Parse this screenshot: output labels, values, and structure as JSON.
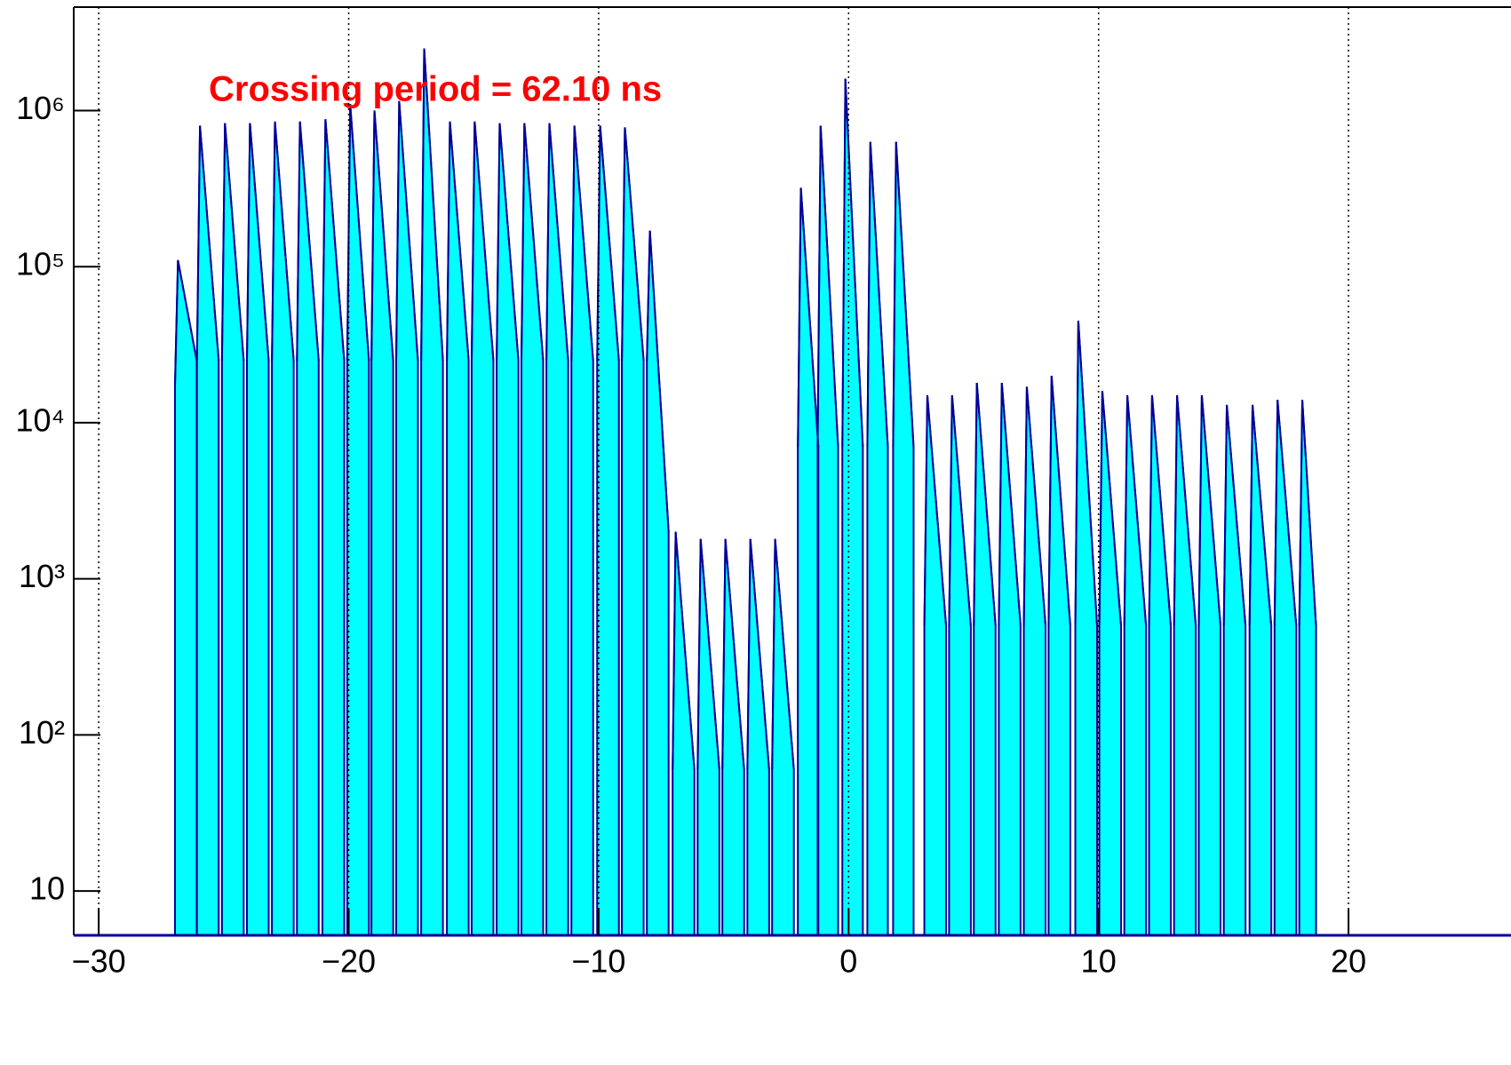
{
  "chart_data": {
    "type": "histogram-line",
    "annotation": "Crossing period =  62.10 ns",
    "log_y": true,
    "grid": true,
    "fill_color": "#00ffff",
    "line_color": "#000099",
    "annotation_color": "#ff0000",
    "xlim": [
      -31,
      26.5
    ],
    "xticks": [
      {
        "value": -30,
        "label": "−30"
      },
      {
        "value": -20,
        "label": "−20"
      },
      {
        "value": -10,
        "label": "−10"
      },
      0,
      10,
      20
    ],
    "ylim": [
      5.2,
      4600000
    ],
    "yticks": [
      10,
      {
        "value": 100,
        "label": "10²"
      },
      {
        "value": 1000,
        "label": "10³"
      },
      {
        "value": 10000,
        "label": "10⁴"
      },
      {
        "value": 100000,
        "label": "10⁵"
      },
      {
        "value": 1000000,
        "label": "10⁶"
      }
    ],
    "x": [
      -26.95,
      -26.83,
      -26.08,
      null,
      -26.07,
      -25.95,
      -25.2,
      null,
      -25.07,
      -24.95,
      -24.2,
      null,
      -24.07,
      -23.95,
      -23.2,
      null,
      -23.07,
      -22.95,
      -22.2,
      null,
      -22.07,
      -21.95,
      -21.2,
      null,
      -21.05,
      -20.93,
      -20.18,
      null,
      -20.06,
      -19.94,
      -19.19,
      null,
      -19.09,
      -18.97,
      -18.22,
      null,
      -18.1,
      -17.98,
      -17.23,
      null,
      -17.1,
      -16.98,
      -16.23,
      null,
      -16.07,
      -15.95,
      -15.2,
      null,
      -15.08,
      -14.96,
      -14.21,
      null,
      -14.08,
      -13.96,
      -13.21,
      null,
      -13.09,
      -12.97,
      -12.22,
      null,
      -12.09,
      -11.97,
      -11.22,
      null,
      -11.09,
      -10.97,
      -10.22,
      null,
      -10.06,
      -9.94,
      -9.19,
      null,
      -9.07,
      -8.95,
      -8.2,
      null,
      -8.07,
      -7.95,
      -7.2,
      null,
      -7.04,
      -6.92,
      -6.17,
      null,
      -6.04,
      -5.92,
      -5.17,
      null,
      -5.05,
      -4.93,
      -4.18,
      null,
      -4.05,
      -3.93,
      -3.18,
      null,
      -3.06,
      -2.94,
      -2.19,
      null,
      -2.03,
      -1.91,
      -1.21,
      null,
      -1.24,
      -1.12,
      -0.42,
      null,
      -0.25,
      -0.13,
      0.57,
      null,
      0.75,
      0.87,
      1.57,
      null,
      1.78,
      1.9,
      2.6,
      null,
      3.03,
      3.15,
      3.9,
      null,
      4.02,
      4.14,
      4.89,
      null,
      5.01,
      5.13,
      5.88,
      null,
      6.01,
      6.13,
      6.88,
      null,
      7.01,
      7.13,
      7.88,
      null,
      8.0,
      8.12,
      8.87,
      null,
      9.07,
      9.19,
      9.94,
      null,
      10.03,
      10.15,
      10.9,
      null,
      11.03,
      11.15,
      11.9,
      null,
      12.02,
      12.14,
      12.89,
      null,
      13.02,
      13.14,
      13.89,
      null,
      14.01,
      14.13,
      14.88,
      null,
      15.01,
      15.13,
      15.88,
      null,
      16.04,
      16.16,
      16.91,
      null,
      17.04,
      17.16,
      17.91,
      null,
      18.03,
      18.15,
      18.7
    ],
    "values": [
      17000,
      110000,
      25000,
      null,
      25000,
      800000,
      25000,
      null,
      25000,
      830000,
      25000,
      null,
      25000,
      830000,
      25000,
      null,
      25000,
      850000,
      25000,
      null,
      25000,
      850000,
      25000,
      null,
      25000,
      880000,
      25000,
      null,
      25000,
      1100000,
      25000,
      null,
      25000,
      1000000,
      25000,
      null,
      25000,
      1150000,
      25000,
      null,
      25000,
      2500000,
      25000,
      null,
      25000,
      850000,
      25000,
      null,
      25000,
      850000,
      25000,
      null,
      25000,
      830000,
      25000,
      null,
      25000,
      830000,
      25000,
      null,
      25000,
      830000,
      25000,
      null,
      25000,
      800000,
      25000,
      null,
      25000,
      800000,
      25000,
      null,
      25000,
      780000,
      25000,
      null,
      25000,
      170000,
      2000,
      null,
      60,
      2000,
      60,
      null,
      60,
      1800,
      60,
      null,
      60,
      1800,
      60,
      null,
      60,
      1800,
      60,
      null,
      60,
      1800,
      60,
      null,
      7000,
      320000,
      7000,
      null,
      7000,
      800000,
      7000,
      null,
      7000,
      1600000,
      7000,
      null,
      7000,
      630000,
      7000,
      null,
      7000,
      630000,
      7000,
      null,
      500,
      15000,
      500,
      null,
      500,
      15000,
      500,
      null,
      500,
      18000,
      500,
      null,
      500,
      18000,
      500,
      null,
      500,
      17000,
      500,
      null,
      500,
      20000,
      500,
      null,
      500,
      45000,
      500,
      null,
      500,
      16000,
      500,
      null,
      500,
      15000,
      500,
      null,
      500,
      15000,
      500,
      null,
      500,
      15000,
      500,
      null,
      500,
      15000,
      500,
      null,
      500,
      13000,
      500,
      null,
      500,
      13000,
      500,
      null,
      500,
      14000,
      500,
      null,
      500,
      14000,
      500
    ]
  }
}
